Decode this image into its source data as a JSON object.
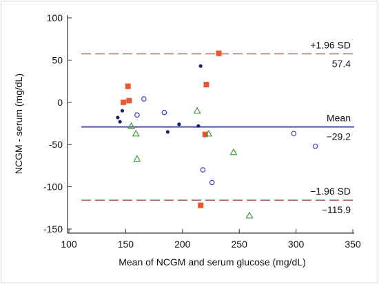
{
  "chart_data": {
    "type": "scatter",
    "title": "",
    "xlabel": "Mean of NCGM and serum glucose (mg/dL)",
    "ylabel": "NCGM - serum (mg/dL)",
    "xlim": [
      100,
      350
    ],
    "ylim": [
      -150,
      100
    ],
    "xticks": [
      100,
      150,
      200,
      250,
      300,
      350
    ],
    "yticks": [
      100,
      50,
      0,
      -50,
      -100,
      -150
    ],
    "grid": false,
    "reference_lines": [
      {
        "label": "+1.96 SD",
        "value_label": "57.4",
        "y": 57.4,
        "style": "dashed",
        "color": "#b5504a"
      },
      {
        "label": "Mean",
        "value_label": "−29.2",
        "y": -29.2,
        "style": "solid",
        "color": "#2a2e8c"
      },
      {
        "label": "−1.96 SD",
        "value_label": "−115.9",
        "y": -115.9,
        "style": "dashed",
        "color": "#b5504a"
      }
    ],
    "series": [
      {
        "marker": "filled-square",
        "color": "#e8572e",
        "points": [
          [
            148,
            0
          ],
          [
            152,
            19
          ],
          [
            153,
            2
          ],
          [
            216,
            -122
          ],
          [
            220,
            -38
          ],
          [
            221,
            21
          ],
          [
            232,
            58
          ]
        ]
      },
      {
        "marker": "filled-circle",
        "color": "#1a1f6e",
        "points": [
          [
            143,
            -18
          ],
          [
            145,
            -23
          ],
          [
            147,
            -10
          ],
          [
            187,
            -35
          ],
          [
            197,
            -26
          ],
          [
            214,
            -28
          ],
          [
            216,
            43
          ]
        ]
      },
      {
        "marker": "open-circle",
        "color": "#3a3ec2",
        "points": [
          [
            160,
            -15
          ],
          [
            166,
            4
          ],
          [
            184,
            -12
          ],
          [
            218,
            -80
          ],
          [
            226,
            -95
          ],
          [
            298,
            -37
          ],
          [
            317,
            -52
          ]
        ]
      },
      {
        "marker": "open-triangle",
        "color": "#3e9a3a",
        "points": [
          [
            155,
            -28
          ],
          [
            159,
            -37
          ],
          [
            160,
            -67
          ],
          [
            213,
            -10
          ],
          [
            223,
            -37
          ],
          [
            245,
            -59
          ],
          [
            259,
            -134
          ]
        ]
      }
    ]
  }
}
